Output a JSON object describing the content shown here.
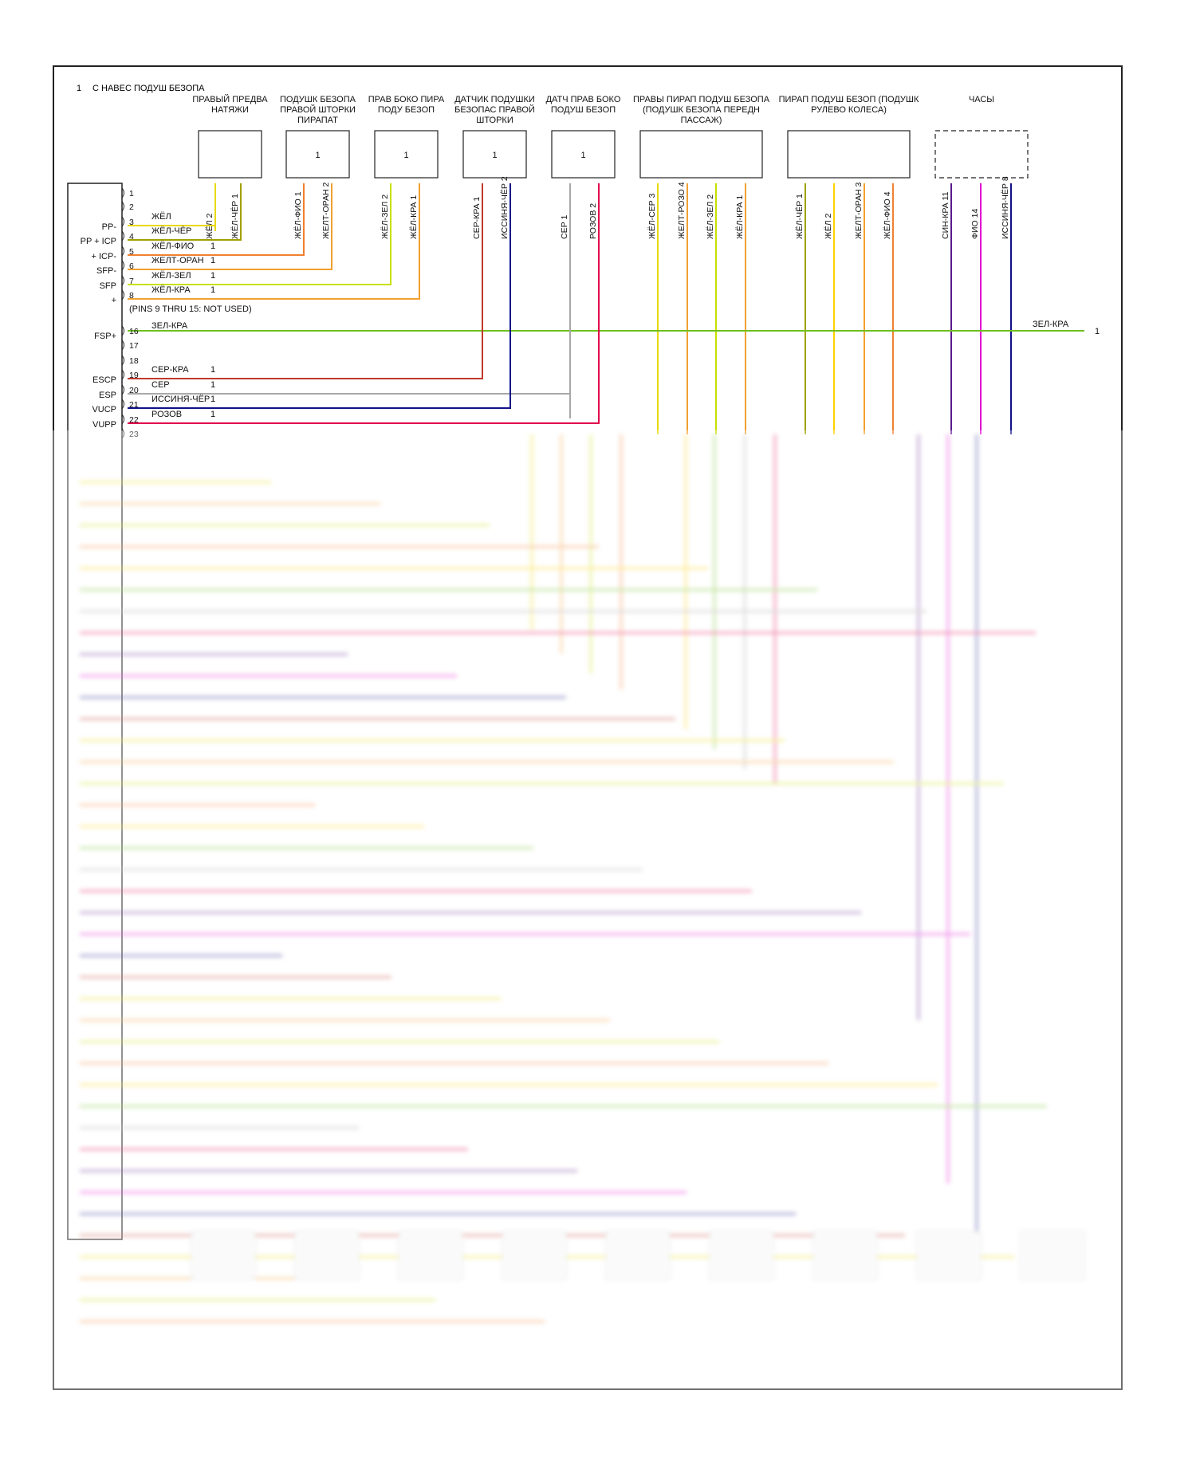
{
  "header": {
    "num": "1",
    "title": "С НАВЕС ПОДУШ БЕЗОПА"
  },
  "top_note": "(PINS 9 THRU 15: NOT USED)",
  "colors": {
    "yellow": "#e8d900",
    "orange": "#f0a030",
    "green": "#6fbf1f",
    "darkred": "#c0392b",
    "navy": "#10108a",
    "gray": "#a8a8a8",
    "pink": "#e0004a",
    "purple": "#5a1a8c",
    "magenta": "#e000d0",
    "olive": "#a0a000",
    "lightgreen": "#c8e000",
    "gold": "#ffd000",
    "fiolight": "#f08030",
    "border": "#222222"
  },
  "components": [
    {
      "title": "ПРАВЫЙ ПРЕДВА НАТЯЖИ",
      "num": "",
      "dashed": false,
      "pins": [
        {
          "label": "ЖЁЛ",
          "num": "2",
          "color": "yellow"
        },
        {
          "label": "ЖЁЛ-ЧЁР",
          "num": "1",
          "color": "olive"
        }
      ]
    },
    {
      "title": "ПОДУШК БЕЗОПА ПРАВОЙ ШТОРКИ ПИРАПАТ",
      "num": "1",
      "dashed": false,
      "pins": [
        {
          "label": "ЖЁЛ-ФИО",
          "num": "1",
          "color": "fiolight"
        },
        {
          "label": "ЖЕЛТ-ОРАН",
          "num": "2",
          "color": "orange"
        }
      ]
    },
    {
      "title": "ПРАВ БОКО ПИРА ПОДУ БЕЗОП",
      "num": "1",
      "dashed": false,
      "pins": [
        {
          "label": "ЖЁЛ-ЗЕЛ",
          "num": "2",
          "color": "lightgreen"
        },
        {
          "label": "ЖЁЛ-КРА",
          "num": "1",
          "color": "orange"
        }
      ]
    },
    {
      "title": "ДАТЧИК ПОДУШКИ БЕЗОПАС ПРАВОЙ ШТОРКИ",
      "num": "1",
      "dashed": false,
      "pins": [
        {
          "label": "СЕР-КРА",
          "num": "1",
          "color": "darkred"
        },
        {
          "label": "ИССИНЯ-ЧЁР",
          "num": "2",
          "color": "navy"
        }
      ]
    },
    {
      "title": "ДАТЧ ПРАВ БОКО ПОДУШ БЕЗОП",
      "num": "1",
      "dashed": false,
      "pins": [
        {
          "label": "СЕР",
          "num": "1",
          "color": "gray"
        },
        {
          "label": "РОЗОВ",
          "num": "2",
          "color": "pink"
        }
      ]
    },
    {
      "title": "ПРАВЫ ПИРАП ПОДУШ БЕЗОПА (ПОДУШК БЕЗОПА ПЕРЕДН ПАССАЖ)",
      "num": "",
      "dashed": false,
      "pins": [
        {
          "label": "ЖЁЛ-СЕР",
          "num": "3",
          "color": "yellow"
        },
        {
          "label": "ЖЕЛТ-РОЗО",
          "num": "4",
          "color": "orange"
        },
        {
          "label": "ЖЁЛ-ЗЕЛ",
          "num": "2",
          "color": "lightgreen"
        },
        {
          "label": "ЖЁЛ-КРА",
          "num": "1",
          "color": "orange"
        }
      ]
    },
    {
      "title": "ПИРАП ПОДУШ БЕЗОП (ПОДУШК РУЛЕВО КОЛЕСА)",
      "num": "",
      "dashed": false,
      "pins": [
        {
          "label": "ЖЁЛ-ЧЁР",
          "num": "1",
          "color": "olive"
        },
        {
          "label": "ЖЁЛ",
          "num": "2",
          "color": "gold"
        },
        {
          "label": "ЖЕЛТ-ОРАН",
          "num": "3",
          "color": "orange"
        },
        {
          "label": "ЖЁЛ-ФИО",
          "num": "4",
          "color": "fiolight"
        }
      ]
    },
    {
      "title": "ЧАСЫ",
      "num": "",
      "dashed": true,
      "pins": [
        {
          "label": "СИН-КРА",
          "num": "11",
          "color": "purple"
        },
        {
          "label": "ФИО",
          "num": "14",
          "color": "magenta"
        },
        {
          "label": "ИССИНЯ-ЧЁР",
          "num": "8",
          "color": "navy"
        }
      ]
    }
  ],
  "connector_pins": [
    {
      "num": "1",
      "side": "",
      "wire": "",
      "end": "",
      "color": ""
    },
    {
      "num": "2",
      "side": "",
      "wire": "",
      "end": "",
      "color": ""
    },
    {
      "num": "3",
      "side": "PP-",
      "wire": "ЖЁЛ",
      "end": "",
      "color": "yellow"
    },
    {
      "num": "4",
      "side": "PP + ICP",
      "wire": "ЖЁЛ-ЧЁР",
      "end": "",
      "color": "olive"
    },
    {
      "num": "5",
      "side": "+ ICP-",
      "wire": "ЖЁЛ-ФИО",
      "end": "1",
      "color": "fiolight"
    },
    {
      "num": "6",
      "side": "SFP-",
      "wire": "ЖЕЛТ-ОРАН",
      "end": "1",
      "color": "orange"
    },
    {
      "num": "7",
      "side": "SFP",
      "wire": "ЖЁЛ-ЗЕЛ",
      "end": "1",
      "color": "lightgreen"
    },
    {
      "num": "8",
      "side": "+",
      "wire": "ЖЁЛ-КРА",
      "end": "1",
      "color": "orange"
    },
    {
      "num": "16",
      "side": "FSP+",
      "wire": "ЗЕЛ-КРА",
      "end": "",
      "color": "green"
    },
    {
      "num": "17",
      "side": "",
      "wire": "",
      "end": "",
      "color": ""
    },
    {
      "num": "18",
      "side": "",
      "wire": "",
      "end": "",
      "color": ""
    },
    {
      "num": "19",
      "side": "ESCP",
      "wire": "СЕР-КРА",
      "end": "1",
      "color": "darkred"
    },
    {
      "num": "20",
      "side": "ESP",
      "wire": "СЕР",
      "end": "1",
      "color": "gray"
    },
    {
      "num": "21",
      "side": "VUCP",
      "wire": "ИССИНЯ-ЧЁР",
      "end": "1",
      "color": "navy"
    },
    {
      "num": "22",
      "side": "VUPP",
      "wire": "РОЗОВ",
      "end": "1",
      "color": "pink"
    },
    {
      "num": "23",
      "side": "",
      "wire": "",
      "end": "",
      "color": ""
    }
  ],
  "fsp_right": {
    "label": "ЗЕЛ-КРА",
    "num": "1"
  }
}
